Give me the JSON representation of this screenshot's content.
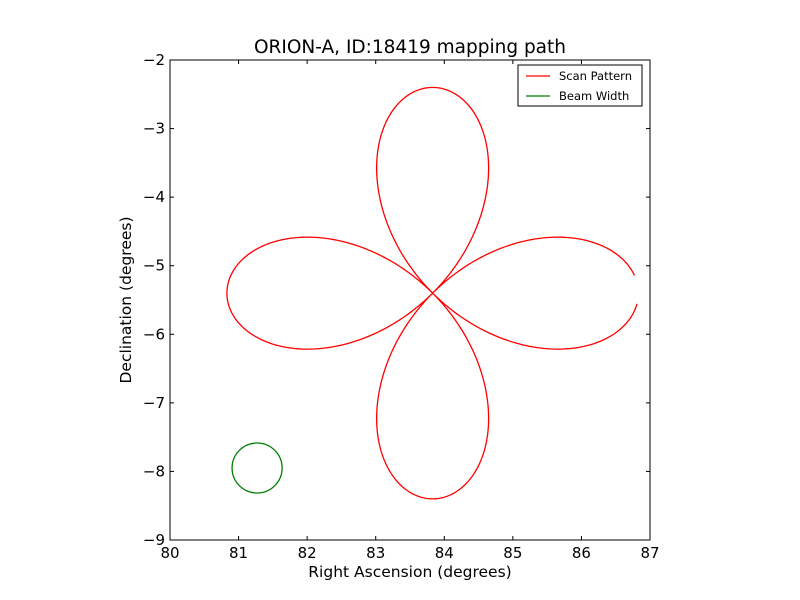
{
  "chart_data": {
    "type": "line",
    "title": "ORION-A, ID:18419 mapping path",
    "xlabel": "Right Ascension (degrees)",
    "ylabel": "Declination (degrees)",
    "xlim": [
      80,
      87
    ],
    "ylim": [
      -9,
      -2
    ],
    "xticks": [
      80,
      81,
      82,
      83,
      84,
      85,
      86,
      87
    ],
    "xtick_labels": [
      "80",
      "81",
      "82",
      "83",
      "84",
      "85",
      "86",
      "87"
    ],
    "yticks": [
      -9,
      -8,
      -7,
      -6,
      -5,
      -4,
      -3,
      -2
    ],
    "ytick_labels": [
      "−9",
      "−8",
      "−7",
      "−6",
      "−5",
      "−4",
      "−3",
      "−2"
    ],
    "grid": false,
    "legend_position": "top-right",
    "series": [
      {
        "name": "Scan Pattern",
        "color": "#ff0000",
        "shape": "four-petal rose curve",
        "center": [
          83.83,
          -5.4
        ],
        "petal_radius": 3.0,
        "arc_degrees": [
          5,
          357
        ]
      },
      {
        "name": "Beam Width",
        "color": "#007f00",
        "shape": "circle",
        "center": [
          81.27,
          -7.95
        ],
        "radius": 0.365
      }
    ]
  }
}
